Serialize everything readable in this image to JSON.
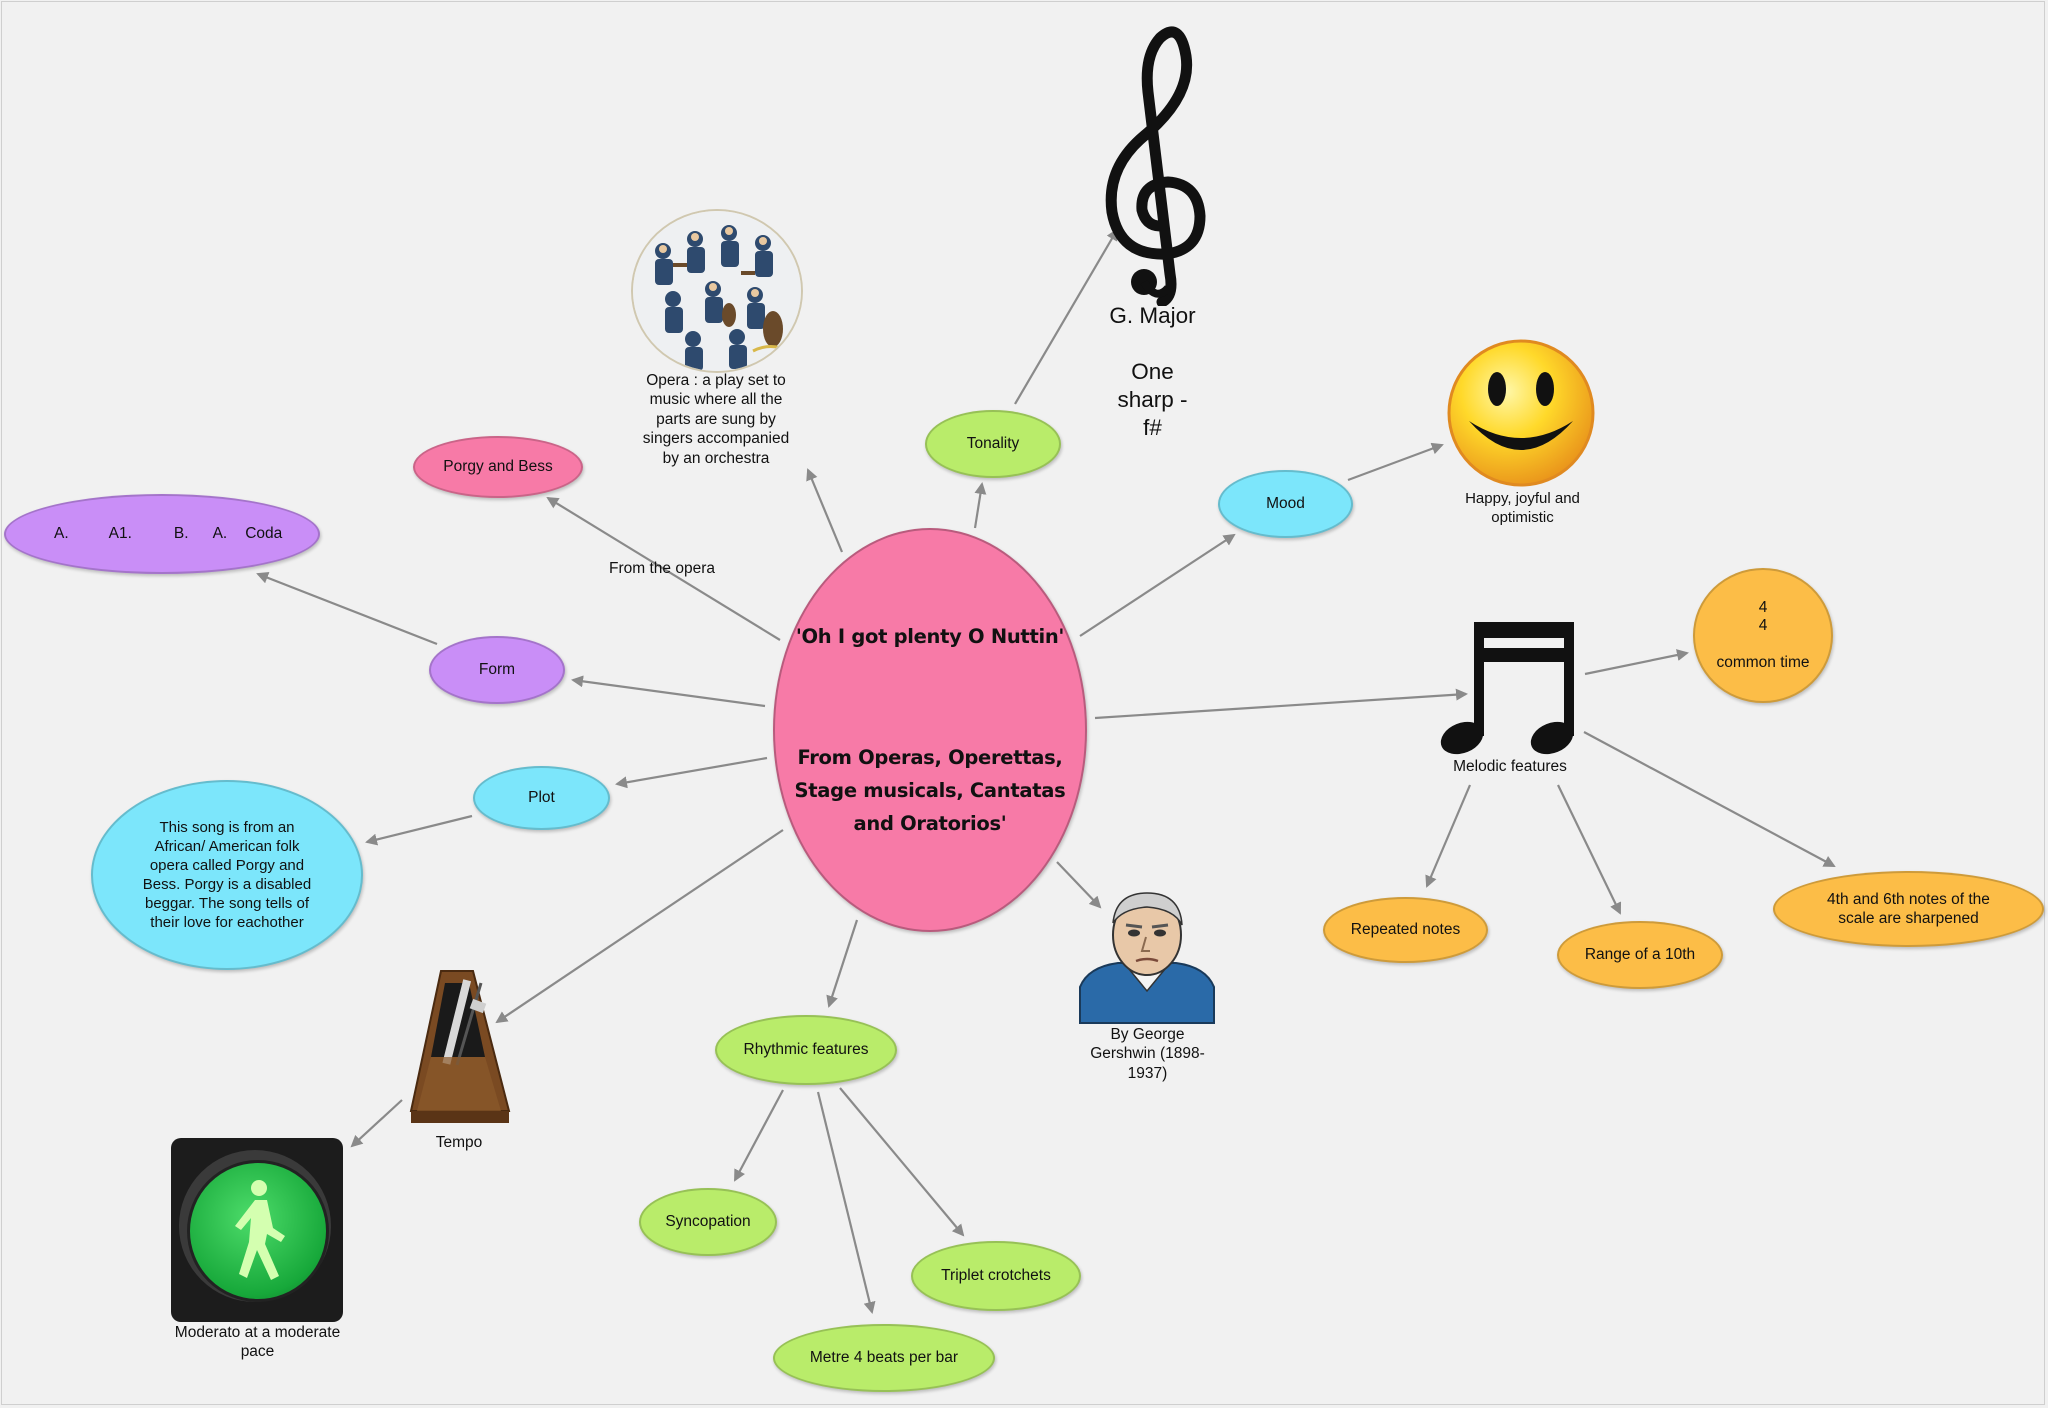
{
  "center": {
    "title": "'Oh I got plenty O Nuttin'",
    "subtitle": "From Operas, Operettas,\nStage musicals, Cantatas\nand Oratorios'"
  },
  "nodes": {
    "porgy": "Porgy and Bess",
    "from_opera": "From the opera",
    "form_sections": [
      "A.",
      "A1.",
      "B.",
      "A.",
      "Coda"
    ],
    "form": "Form",
    "plot": "Plot",
    "plot_desc": "This song is from an\nAfrican/ American folk\nopera called Porgy and\nBess. Porgy is a disabled\nbeggar. The song tells of\ntheir love for eachother",
    "tempo": "Tempo",
    "tempo_desc": "Moderato at a moderate\npace",
    "rhythmic": "Rhythmic features",
    "syncopation": "Syncopation",
    "metre": "Metre 4 beats per bar",
    "triplet": "Triplet crotchets",
    "composer": "By George\nGershwin (1898-\n1937)",
    "opera_def": "Opera : a play set to\nmusic  where all the\nparts are sung by\nsingers accompanied\nby an orchestra",
    "tonality": "Tonality",
    "key": "G. Major",
    "key_sig": "One\nsharp -\nf#",
    "mood": "Mood",
    "mood_desc": "Happy, joyful and\noptimistic",
    "melodic": "Melodic features",
    "time_top": "4",
    "time_bottom": "4",
    "time_name": "common time",
    "repeated": "Repeated notes",
    "range": "Range of a 10th",
    "sharpened": "4th and 6th notes of the\nscale are sharpened"
  },
  "icons": [
    "orchestra-image",
    "treble-clef-icon",
    "smiley-icon",
    "music-notes-icon",
    "composer-portrait",
    "metronome-icon",
    "walk-signal-icon"
  ],
  "colors": {
    "center": "#f77aa7",
    "purple": "#c98ef7",
    "cyan": "#7ce6fb",
    "green": "#b9ec6a",
    "orange": "#fcbd47",
    "arrow": "#8a8a8a"
  }
}
